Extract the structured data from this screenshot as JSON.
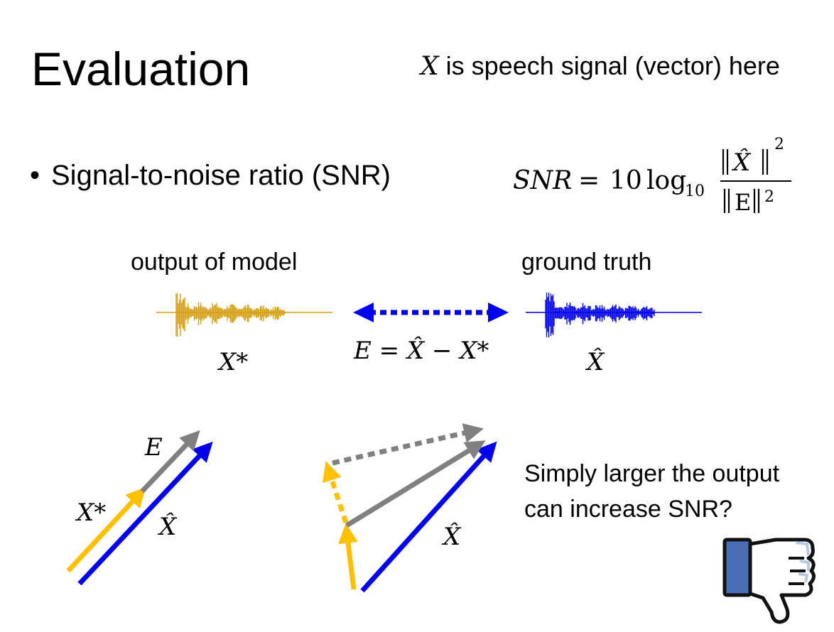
{
  "slide": {
    "title": "Evaluation",
    "top_note": {
      "var": "X",
      "text": "is speech signal (vector) here"
    },
    "bullet": "Signal-to-noise ratio (SNR)",
    "formula": {
      "lhs": "SNR",
      "eq": "=",
      "coef": "10",
      "log": "log",
      "base": "10",
      "num_var": "X̂",
      "num_exp": "2",
      "den_var": "E",
      "den_exp": "2"
    },
    "waveforms": {
      "output_label": "output of model",
      "ground_truth_label": "ground truth",
      "output_symbol": "X*",
      "ground_truth_symbol": "X̂",
      "error_equation": "E = X̂ − X*",
      "output_color": "#d4a017",
      "ground_truth_color": "#0000ee",
      "arrow_color": "#0000ee"
    },
    "diagram_left": {
      "label_e": "E",
      "label_xstar": "X*",
      "label_xhat": "X̂"
    },
    "diagram_right": {
      "label_xhat": "X̂"
    },
    "question_line1": "Simply larger the output",
    "question_line2": "can increase SNR?",
    "colors": {
      "yellow": "#ffc000",
      "gray": "#808080",
      "blue": "#0000ee",
      "thumb_blue": "#4a6fb5"
    },
    "icon": "thumbs-down-icon"
  }
}
